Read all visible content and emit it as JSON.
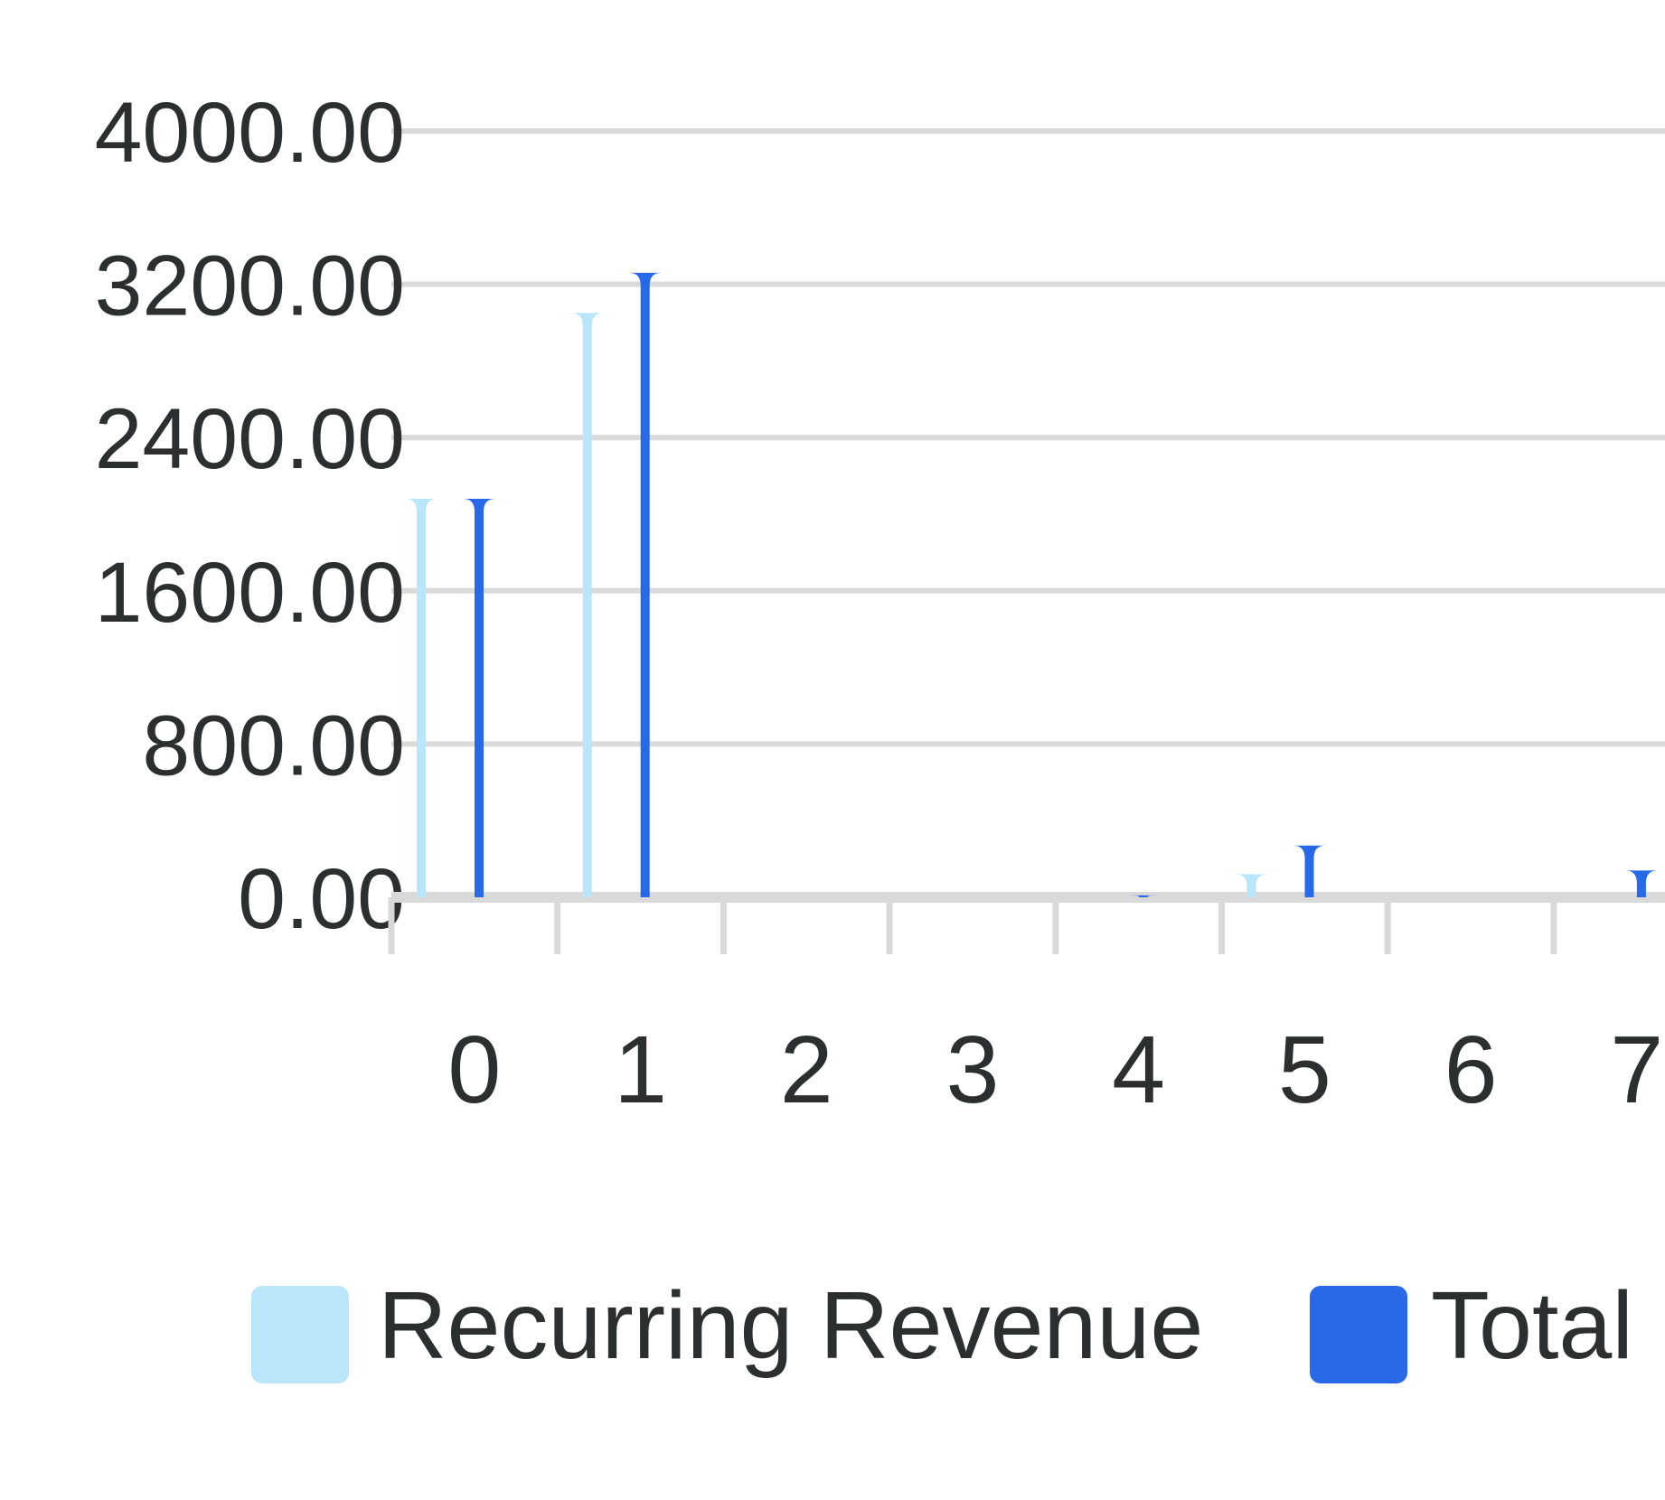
{
  "chart_data": {
    "type": "bar",
    "categories": [
      "0",
      "1",
      "2",
      "3",
      "4",
      "5",
      "6",
      "7"
    ],
    "y_tick_labels": [
      "0.00",
      "800.00",
      "1600.00",
      "2400.00",
      "3200.00",
      "4000.00"
    ],
    "ylim": [
      0,
      4000
    ],
    "grid": true,
    "legend_position": "bottom",
    "series": [
      {
        "name": "Recurring Revenue",
        "color": "#b9e6fb",
        "values": [
          2080,
          3050,
          0,
          0,
          0,
          120,
          0,
          0
        ]
      },
      {
        "name": "Total",
        "color": "#2769e8",
        "values": [
          2080,
          3260,
          0,
          0,
          10,
          270,
          0,
          140
        ]
      }
    ]
  }
}
